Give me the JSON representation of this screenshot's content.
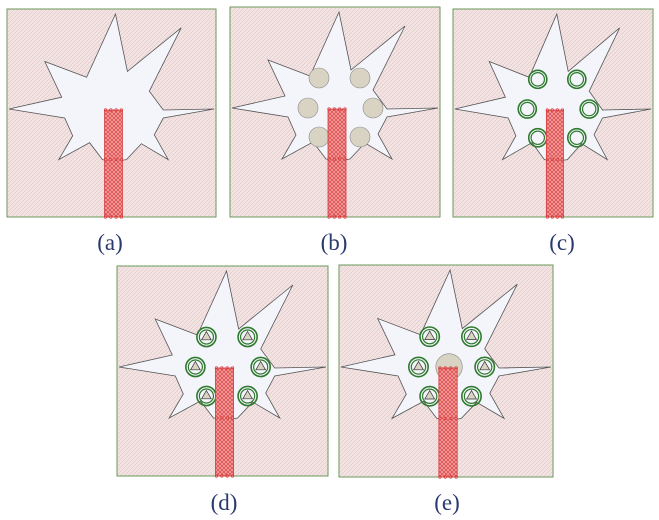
{
  "panels": [
    {
      "id": "a",
      "caption": "(a)",
      "holes": "none",
      "center_patch": false
    },
    {
      "id": "b",
      "caption": "(b)",
      "holes": "filled-circle",
      "center_patch": false
    },
    {
      "id": "c",
      "caption": "(c)",
      "holes": "ring",
      "center_patch": false
    },
    {
      "id": "d",
      "caption": "(d)",
      "holes": "ring-triangle",
      "center_patch": false
    },
    {
      "id": "e",
      "caption": "(e)",
      "holes": "ring-triangle",
      "center_patch": true
    }
  ],
  "colors": {
    "substrate_fill": "#f3e4e4",
    "substrate_border": "#6a9a5a",
    "patch_fill": "#f4f5fb",
    "patch_outline": "#555555",
    "feed_fill": "#ef8d8d",
    "feed_outline": "#d63a3a",
    "hole_ring": "#2f7a2f",
    "hole_fill": "#d9d3c3",
    "caption_text": "#2a3a6e"
  }
}
